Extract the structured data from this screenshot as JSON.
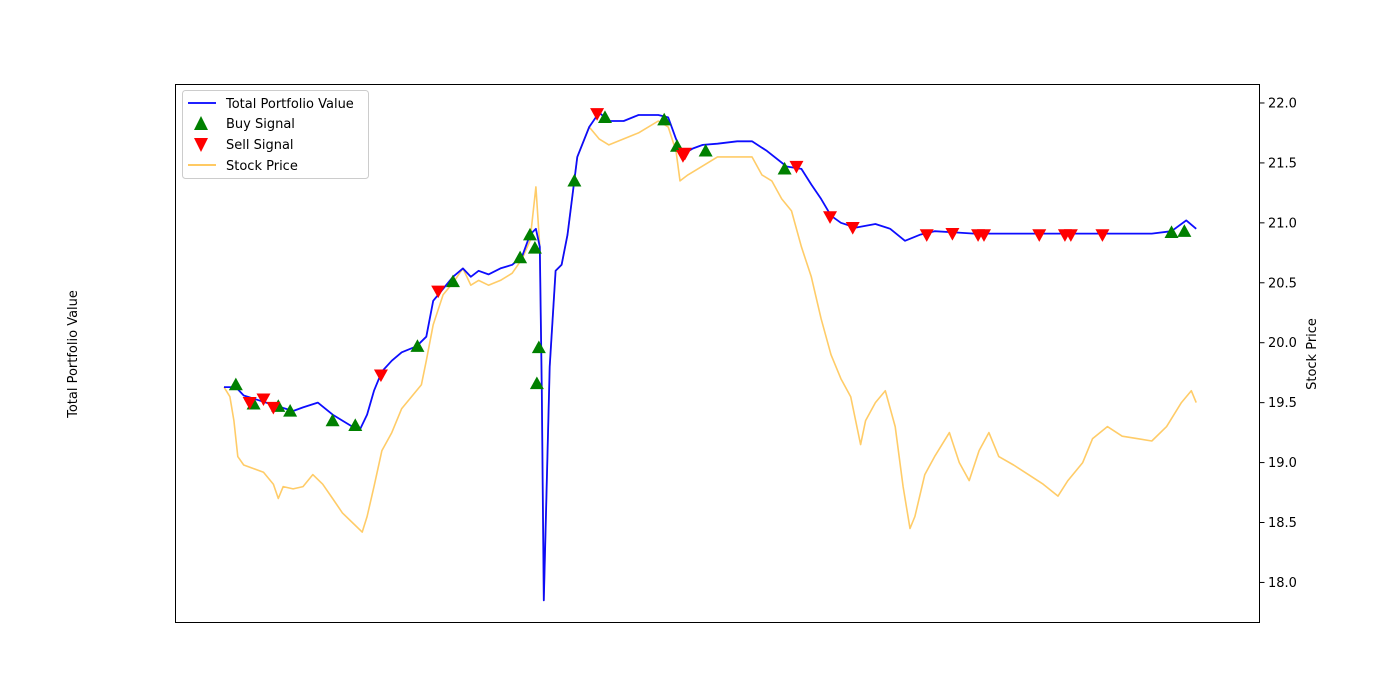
{
  "chart_data": {
    "type": "line",
    "ylabel_left": "Total Portfolio Value",
    "ylabel_right": "Stock Price",
    "x_ticks_visible": false,
    "grid": false,
    "legend_position": "upper-left",
    "x_range": [
      0,
      1000
    ],
    "left_axis_ticks_visible": false,
    "right_ylim": [
      17.67,
      22.15
    ],
    "right_ticks": [
      "18.0",
      "18.5",
      "19.0",
      "19.5",
      "20.0",
      "20.5",
      "21.0",
      "21.5",
      "22.0"
    ],
    "right_tick_values": [
      18.0,
      18.5,
      19.0,
      19.5,
      20.0,
      20.5,
      21.0,
      21.5,
      22.0
    ],
    "series": [
      {
        "name": "Total Portfolio Value",
        "color": "#0000ff",
        "kind": "line",
        "points": [
          [
            0,
            19.63
          ],
          [
            12,
            19.63
          ],
          [
            20,
            19.56
          ],
          [
            35,
            19.52
          ],
          [
            50,
            19.48
          ],
          [
            70,
            19.43
          ],
          [
            80,
            19.46
          ],
          [
            95,
            19.5
          ],
          [
            110,
            19.4
          ],
          [
            120,
            19.35
          ],
          [
            130,
            19.3
          ],
          [
            138,
            19.28
          ],
          [
            145,
            19.4
          ],
          [
            152,
            19.6
          ],
          [
            160,
            19.76
          ],
          [
            170,
            19.85
          ],
          [
            180,
            19.92
          ],
          [
            195,
            19.97
          ],
          [
            205,
            20.05
          ],
          [
            212,
            20.35
          ],
          [
            222,
            20.45
          ],
          [
            232,
            20.55
          ],
          [
            242,
            20.62
          ],
          [
            250,
            20.55
          ],
          [
            258,
            20.6
          ],
          [
            268,
            20.57
          ],
          [
            280,
            20.62
          ],
          [
            292,
            20.65
          ],
          [
            302,
            20.72
          ],
          [
            310,
            20.9
          ],
          [
            316,
            20.95
          ],
          [
            320,
            20.8
          ],
          [
            322,
            19.6
          ],
          [
            324,
            17.85
          ],
          [
            330,
            19.8
          ],
          [
            336,
            20.6
          ],
          [
            342,
            20.65
          ],
          [
            348,
            20.9
          ],
          [
            358,
            21.55
          ],
          [
            370,
            21.8
          ],
          [
            380,
            21.92
          ],
          [
            390,
            21.85
          ],
          [
            405,
            21.85
          ],
          [
            420,
            21.9
          ],
          [
            440,
            21.9
          ],
          [
            450,
            21.88
          ],
          [
            458,
            21.7
          ],
          [
            465,
            21.57
          ],
          [
            475,
            21.62
          ],
          [
            485,
            21.65
          ],
          [
            500,
            21.66
          ],
          [
            520,
            21.68
          ],
          [
            535,
            21.68
          ],
          [
            550,
            21.6
          ],
          [
            570,
            21.47
          ],
          [
            585,
            21.45
          ],
          [
            595,
            21.32
          ],
          [
            605,
            21.2
          ],
          [
            615,
            21.06
          ],
          [
            625,
            21.0
          ],
          [
            640,
            20.96
          ],
          [
            660,
            20.99
          ],
          [
            675,
            20.95
          ],
          [
            690,
            20.85
          ],
          [
            705,
            20.9
          ],
          [
            720,
            20.93
          ],
          [
            740,
            20.92
          ],
          [
            760,
            20.91
          ],
          [
            790,
            20.91
          ],
          [
            830,
            20.91
          ],
          [
            870,
            20.91
          ],
          [
            910,
            20.91
          ],
          [
            940,
            20.91
          ],
          [
            960,
            20.93
          ],
          [
            975,
            21.02
          ],
          [
            985,
            20.95
          ]
        ]
      },
      {
        "name": "Stock Price",
        "color": "#ffc34d",
        "kind": "line",
        "points": [
          [
            0,
            19.63
          ],
          [
            6,
            19.55
          ],
          [
            10,
            19.35
          ],
          [
            14,
            19.05
          ],
          [
            20,
            18.98
          ],
          [
            30,
            18.95
          ],
          [
            40,
            18.92
          ],
          [
            50,
            18.82
          ],
          [
            55,
            18.7
          ],
          [
            60,
            18.8
          ],
          [
            70,
            18.78
          ],
          [
            80,
            18.8
          ],
          [
            90,
            18.9
          ],
          [
            100,
            18.82
          ],
          [
            110,
            18.7
          ],
          [
            120,
            18.58
          ],
          [
            130,
            18.5
          ],
          [
            140,
            18.42
          ],
          [
            145,
            18.55
          ],
          [
            152,
            18.8
          ],
          [
            160,
            19.1
          ],
          [
            170,
            19.25
          ],
          [
            180,
            19.45
          ],
          [
            190,
            19.55
          ],
          [
            200,
            19.65
          ],
          [
            205,
            19.85
          ],
          [
            212,
            20.15
          ],
          [
            222,
            20.4
          ],
          [
            232,
            20.5
          ],
          [
            242,
            20.62
          ],
          [
            250,
            20.48
          ],
          [
            258,
            20.52
          ],
          [
            268,
            20.48
          ],
          [
            280,
            20.52
          ],
          [
            292,
            20.58
          ],
          [
            302,
            20.7
          ],
          [
            310,
            20.85
          ],
          [
            316,
            21.3
          ],
          [
            320,
            20.8
          ],
          [
            322,
            19.6
          ],
          [
            324,
            17.85
          ],
          [
            330,
            19.8
          ],
          [
            336,
            20.6
          ],
          [
            342,
            20.65
          ],
          [
            348,
            20.9
          ],
          [
            358,
            21.55
          ],
          [
            370,
            21.8
          ],
          [
            380,
            21.7
          ],
          [
            390,
            21.65
          ],
          [
            405,
            21.7
          ],
          [
            420,
            21.75
          ],
          [
            440,
            21.85
          ],
          [
            450,
            21.8
          ],
          [
            458,
            21.6
          ],
          [
            462,
            21.35
          ],
          [
            470,
            21.4
          ],
          [
            480,
            21.45
          ],
          [
            500,
            21.55
          ],
          [
            520,
            21.55
          ],
          [
            535,
            21.55
          ],
          [
            545,
            21.4
          ],
          [
            555,
            21.35
          ],
          [
            565,
            21.2
          ],
          [
            575,
            21.1
          ],
          [
            585,
            20.8
          ],
          [
            595,
            20.55
          ],
          [
            605,
            20.2
          ],
          [
            615,
            19.9
          ],
          [
            625,
            19.7
          ],
          [
            635,
            19.55
          ],
          [
            645,
            19.15
          ],
          [
            650,
            19.35
          ],
          [
            660,
            19.5
          ],
          [
            670,
            19.6
          ],
          [
            680,
            19.3
          ],
          [
            688,
            18.8
          ],
          [
            695,
            18.45
          ],
          [
            700,
            18.55
          ],
          [
            710,
            18.9
          ],
          [
            720,
            19.05
          ],
          [
            735,
            19.25
          ],
          [
            745,
            19.0
          ],
          [
            755,
            18.85
          ],
          [
            765,
            19.1
          ],
          [
            775,
            19.25
          ],
          [
            785,
            19.05
          ],
          [
            800,
            18.98
          ],
          [
            815,
            18.9
          ],
          [
            830,
            18.82
          ],
          [
            845,
            18.72
          ],
          [
            855,
            18.85
          ],
          [
            870,
            19.0
          ],
          [
            880,
            19.2
          ],
          [
            895,
            19.3
          ],
          [
            910,
            19.22
          ],
          [
            925,
            19.2
          ],
          [
            940,
            19.18
          ],
          [
            955,
            19.3
          ],
          [
            970,
            19.5
          ],
          [
            980,
            19.6
          ],
          [
            985,
            19.5
          ]
        ]
      },
      {
        "name": "Buy Signal",
        "color": "#008000",
        "kind": "marker-up",
        "points": [
          [
            12,
            19.65
          ],
          [
            30,
            19.49
          ],
          [
            55,
            19.47
          ],
          [
            67,
            19.43
          ],
          [
            110,
            19.35
          ],
          [
            133,
            19.31
          ],
          [
            196,
            19.97
          ],
          [
            232,
            20.51
          ],
          [
            300,
            20.71
          ],
          [
            310,
            20.9
          ],
          [
            315,
            20.79
          ],
          [
            317,
            19.66
          ],
          [
            319,
            19.96
          ],
          [
            355,
            21.35
          ],
          [
            386,
            21.88
          ],
          [
            446,
            21.86
          ],
          [
            459,
            21.64
          ],
          [
            488,
            21.6
          ],
          [
            568,
            21.45
          ],
          [
            960,
            20.92
          ],
          [
            973,
            20.93
          ]
        ]
      },
      {
        "name": "Sell Signal",
        "color": "#ff0000",
        "kind": "marker-down",
        "points": [
          [
            26,
            19.5
          ],
          [
            40,
            19.53
          ],
          [
            50,
            19.46
          ],
          [
            159,
            19.73
          ],
          [
            217,
            20.43
          ],
          [
            378,
            21.91
          ],
          [
            465,
            21.56
          ],
          [
            467,
            21.58
          ],
          [
            580,
            21.47
          ],
          [
            614,
            21.05
          ],
          [
            637,
            20.96
          ],
          [
            712,
            20.9
          ],
          [
            738,
            20.91
          ],
          [
            764,
            20.9
          ],
          [
            770,
            20.9
          ],
          [
            826,
            20.9
          ],
          [
            852,
            20.9
          ],
          [
            858,
            20.9
          ],
          [
            890,
            20.9
          ]
        ]
      }
    ]
  }
}
